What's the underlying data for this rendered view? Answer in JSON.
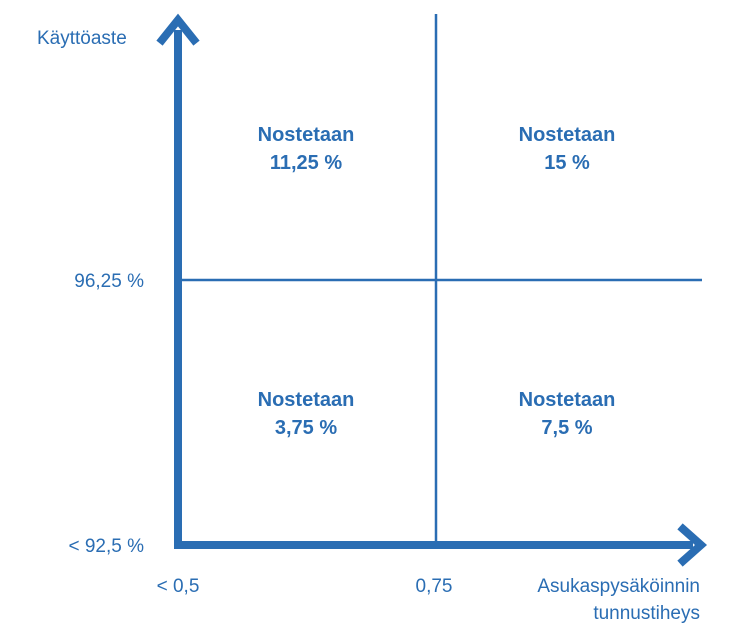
{
  "chart_data": {
    "type": "matrix",
    "color": "#2a6db3",
    "y_axis": {
      "label": "Käyttöaste",
      "ticks": [
        "< 92,5 %",
        "96,25 %"
      ]
    },
    "x_axis": {
      "label_lines": [
        "Asukaspysäköinnin",
        "tunnustiheys"
      ],
      "ticks": [
        "< 0,5",
        "0,75"
      ]
    },
    "quadrants": {
      "top_left": {
        "title": "Nostetaan",
        "value": "11,25 %"
      },
      "top_right": {
        "title": "Nostetaan",
        "value": "15 %"
      },
      "bottom_left": {
        "title": "Nostetaan",
        "value": "3,75 %"
      },
      "bottom_right": {
        "title": "Nostetaan",
        "value": "7,5 %"
      }
    }
  }
}
